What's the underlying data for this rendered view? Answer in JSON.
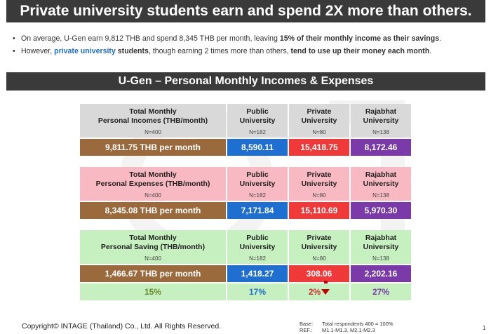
{
  "title": "Private university students earn and spend 2X more than others.",
  "bullets": {
    "b1_text": "On average, U-Gen earn 9,812 THB and spend 8,345 THB per month, leaving ",
    "b1_bold": "15% of their monthly income as their savings",
    "b1_end": ".",
    "b2_a": "However, ",
    "b2_hl": "private university",
    "b2_b": " students",
    "b2_c": ", though earning 2 times more than others, ",
    "b2_bold": "tend to use up their money each month",
    "b2_end": "."
  },
  "section_title": "U-Gen – Personal Monthly Incomes & Expenses",
  "tables": {
    "incomes": {
      "header": "Total Monthly\nPersonal Incomes (THB/month)",
      "header_l1": "Total Monthly",
      "header_l2": "Personal Incomes (THB/month)",
      "n_total": "N=400",
      "public_l1": "Public",
      "public_l2": "University",
      "n_public": "N=182",
      "private_l1": "Private",
      "private_l2": "University",
      "n_private": "N=80",
      "rajabhat_l1": "Rajabhat",
      "rajabhat_l2": "University",
      "n_rajabhat": "N=138",
      "total_value": "9,811.75 THB per month",
      "public_value": "8,590.11",
      "private_value": "15,418.75",
      "rajabhat_value": "8,172.46"
    },
    "expenses": {
      "header_l1": "Total Monthly",
      "header_l2": "Personal Expenses (THB/month)",
      "n_total": "N=400",
      "public_l1": "Public",
      "public_l2": "University",
      "n_public": "N=182",
      "private_l1": "Private",
      "private_l2": "University",
      "n_private": "N=80",
      "rajabhat_l1": "Rajabhat",
      "rajabhat_l2": "University",
      "n_rajabhat": "N=138",
      "total_value": "8,345.08 THB per month",
      "public_value": "7,171.84",
      "private_value": "15,110.69",
      "rajabhat_value": "5,970.30"
    },
    "saving": {
      "header_l1": "Total Monthly",
      "header_l2": "Personal Saving (THB/month)",
      "n_total": "N=400",
      "public_l1": "Public",
      "public_l2": "University",
      "n_public": "N=182",
      "private_l1": "Private",
      "private_l2": "University",
      "n_private": "N=80",
      "rajabhat_l1": "Rajabhat",
      "rajabhat_l2": "University",
      "n_rajabhat": "N=138",
      "total_value": "1,466.67 THB per month",
      "public_value": "1,418.27",
      "private_value": "308.06",
      "rajabhat_value": "2,202.16",
      "pct_total": "15%",
      "pct_public": "17%",
      "pct_private": "2%",
      "pct_rajabhat": "27%",
      "private_indicator_icon": "down-arrow-icon"
    }
  },
  "footer": {
    "copyright": "Copyright© INTAGE (Thailand) Co., Ltd. All Rights Reserved.",
    "base_label": "Base:",
    "base_value": "Total respondents 400 = 100%",
    "ref_label": "REF.:",
    "ref_value": "M1.1-M1.3, M2.1-M2.3",
    "page_number": "1"
  },
  "colors": {
    "title_bg": "#3a3a3a",
    "total_brown": "#9b6a3c",
    "public_blue": "#1f6fd0",
    "private_red": "#f03a3a",
    "rajabhat_purple": "#7a3aa8",
    "incomes_header_bg": "#d9d9d9",
    "expenses_header_bg": "#f8b9c2",
    "saving_header_bg": "#c6f0c0"
  }
}
